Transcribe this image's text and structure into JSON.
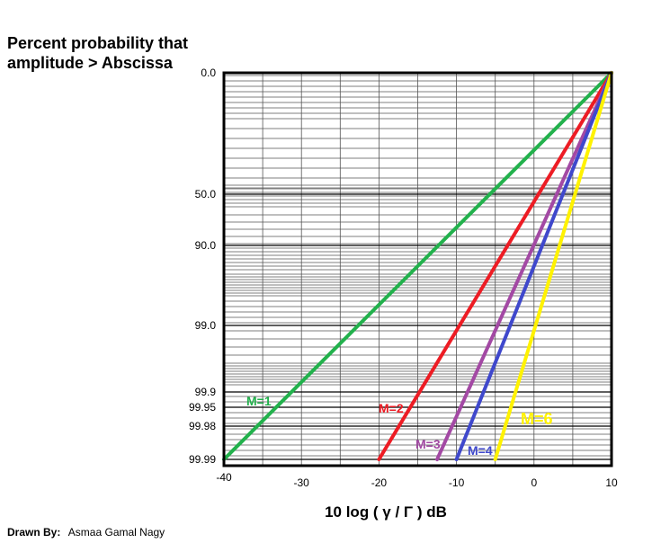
{
  "chart_data": {
    "type": "line",
    "title_lines": [
      "Percent probability that",
      "amplitude > Abscissa"
    ],
    "xlabel": "10 log ( γ /  Γ ) dB",
    "xlim": [
      -40,
      10
    ],
    "x_ticks": [
      -40,
      -30,
      -20,
      -10,
      0,
      10
    ],
    "x_tick_labels": [
      "-40",
      "-30",
      "-20",
      "-10",
      "0",
      "10"
    ],
    "y_ticks": [
      0.0,
      50.0,
      90.0,
      99.0,
      99.9,
      99.95,
      99.98,
      99.99
    ],
    "y_tick_labels": [
      "0.0",
      "50.0",
      "90.0",
      "99.0",
      "99.9",
      "99.95",
      "99.98",
      "99.99"
    ],
    "grid": true,
    "series": [
      {
        "name": "M=1",
        "color": "#22b14c",
        "x": [
          -40,
          10
        ],
        "y": [
          99.99,
          0.0
        ]
      },
      {
        "name": "M=2",
        "color": "#ed1c24",
        "x": [
          -20,
          10
        ],
        "y": [
          99.99,
          0.0
        ]
      },
      {
        "name": "M=3",
        "color": "#a349a4",
        "x": [
          -12.5,
          10
        ],
        "y": [
          99.99,
          0.0
        ]
      },
      {
        "name": "M=4",
        "color": "#3f48cc",
        "x": [
          -10,
          10
        ],
        "y": [
          99.99,
          0.0
        ]
      },
      {
        "name": "M=6",
        "color": "#fff200",
        "x": [
          -5,
          10
        ],
        "y": [
          99.99,
          0.0
        ]
      }
    ]
  },
  "credit": {
    "label": "Drawn By:",
    "name": "Asmaa Gamal Nagy"
  }
}
